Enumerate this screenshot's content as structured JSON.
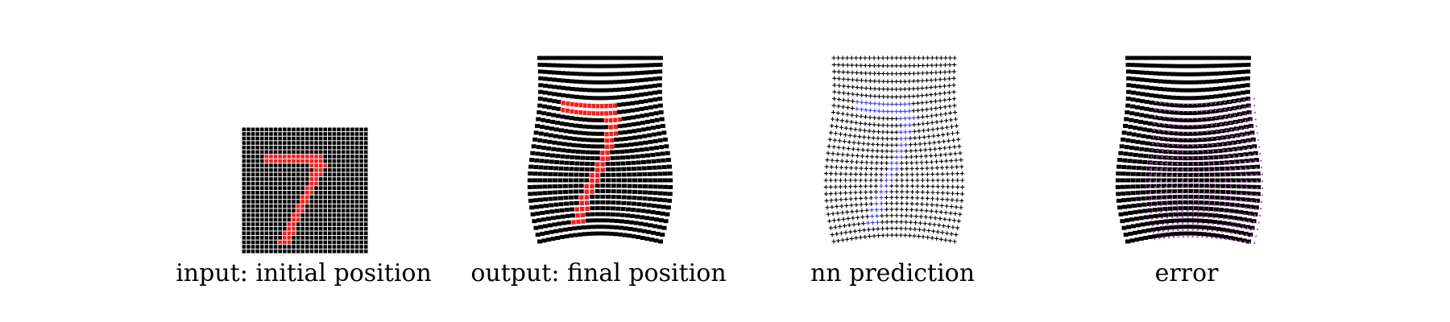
{
  "figure": {
    "panels": [
      {
        "id": "input",
        "caption": "input: initial position"
      },
      {
        "id": "output",
        "caption": "output: final position"
      },
      {
        "id": "prediction",
        "caption": "nn prediction"
      },
      {
        "id": "error",
        "caption": "error"
      }
    ]
  },
  "colors": {
    "grid": "#000000",
    "digit_ground_truth": "#ff1a1a",
    "digit_prediction": "#3a3aff",
    "error_prediction": "#cc33cc",
    "background": "#ffffff"
  },
  "digit": "7"
}
